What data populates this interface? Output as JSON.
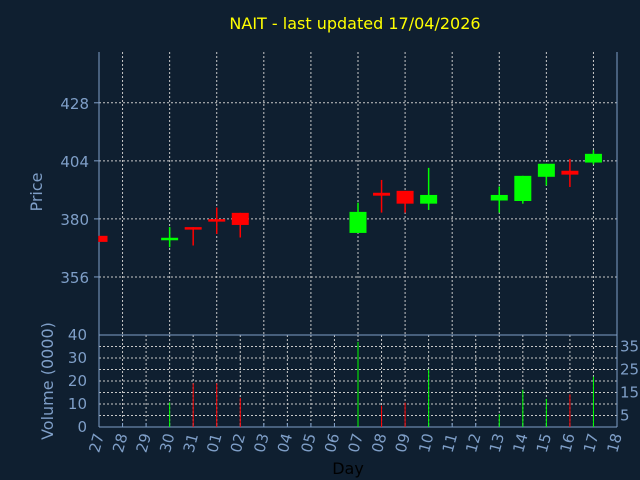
{
  "chart_data": {
    "type": "candlestick",
    "title": "NAIT - last updated 17/04/2026",
    "xlabel": "Day",
    "ylabel": "Price",
    "volume_label": "Volume (0000)",
    "x_ticks": [
      "27",
      "28",
      "29",
      "30",
      "31",
      "01",
      "02",
      "03",
      "04",
      "05",
      "06",
      "07",
      "08",
      "09",
      "10",
      "11",
      "12",
      "13",
      "14",
      "15",
      "16",
      "17",
      "18"
    ],
    "y_ticks": [
      356,
      380,
      404,
      428
    ],
    "ylim": [
      332,
      449
    ],
    "volume_ticks": [
      0,
      5,
      10,
      15,
      20,
      25,
      30,
      35,
      40
    ],
    "volume_ylim": [
      0,
      40
    ],
    "grid": true,
    "colors": {
      "up": "#00ff00",
      "down": "#ff0000",
      "axis": "#7f9fc8",
      "title": "#ffff00",
      "background": "#0f1f30"
    },
    "candles": [
      {
        "day": "27",
        "open": 373.0,
        "high": 373.0,
        "low": 370.5,
        "close": 370.5,
        "volume": null
      },
      {
        "day": "30",
        "open": 371.8,
        "high": 376.6,
        "low": 368.3,
        "close": 372.2,
        "volume": 10.7
      },
      {
        "day": "31",
        "open": 376.6,
        "high": 376.6,
        "low": 369.0,
        "close": 375.6,
        "volume": 19.0
      },
      {
        "day": "01",
        "open": 379.9,
        "high": 384.7,
        "low": 373.8,
        "close": 378.9,
        "volume": 19.0
      },
      {
        "day": "02",
        "open": 382.5,
        "high": 382.5,
        "low": 372.3,
        "close": 377.5,
        "volume": 12.7
      },
      {
        "day": "07",
        "open": 374.2,
        "high": 386.7,
        "low": 374.2,
        "close": 382.9,
        "volume": 37.0
      },
      {
        "day": "08",
        "open": 390.8,
        "high": 396.1,
        "low": 382.6,
        "close": 389.6,
        "volume": 9.3
      },
      {
        "day": "09",
        "open": 391.6,
        "high": 391.6,
        "low": 382.6,
        "close": 386.3,
        "volume": 10.6
      },
      {
        "day": "10",
        "open": 386.3,
        "high": 401.1,
        "low": 383.7,
        "close": 389.9,
        "volume": 25.0
      },
      {
        "day": "13",
        "open": 387.6,
        "high": 393.4,
        "low": 382.6,
        "close": 389.9,
        "volume": 5.6
      },
      {
        "day": "14",
        "open": 387.4,
        "high": 397.8,
        "low": 386.3,
        "close": 397.8,
        "volume": 16.2
      },
      {
        "day": "15",
        "open": 397.4,
        "high": 402.8,
        "low": 393.8,
        "close": 402.8,
        "volume": 12.2
      },
      {
        "day": "16",
        "open": 399.9,
        "high": 404.8,
        "low": 393.2,
        "close": 398.3,
        "volume": 14.2
      },
      {
        "day": "17",
        "open": 403.3,
        "high": 408.5,
        "low": 402.5,
        "close": 406.9,
        "volume": 21.9
      }
    ]
  }
}
